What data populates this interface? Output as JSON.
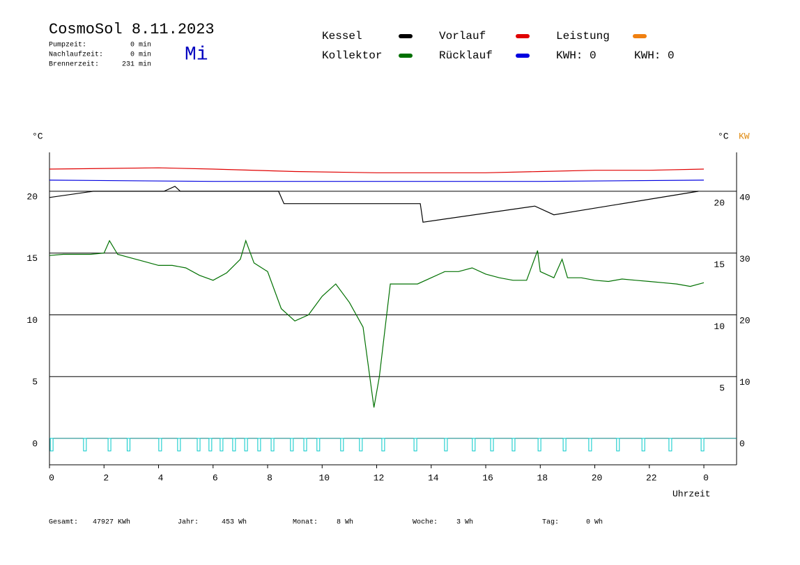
{
  "header": {
    "title": "CosmoSol 8.11.2023",
    "day": "Mi",
    "stats": [
      {
        "label": "Pumpzeit:",
        "value": "0 min"
      },
      {
        "label": "Nachlaufzeit:",
        "value": "0 min"
      },
      {
        "label": "Brennerzeit:",
        "value": "231 min"
      }
    ]
  },
  "legend_extra": [
    {
      "text": "KWH: 0",
      "color": "#e08a10"
    },
    {
      "text": "KWH: 0",
      "color": "#800080"
    }
  ],
  "footer": [
    {
      "label": "Gesamt:",
      "value": "47927 KWh"
    },
    {
      "label": "Jahr:",
      "value": "453 Wh"
    },
    {
      "label": "Monat:",
      "value": "8 Wh"
    },
    {
      "label": "Woche:",
      "value": "3 Wh"
    },
    {
      "label": "Tag:",
      "value": "0 Wh"
    }
  ],
  "chart_data": {
    "type": "line",
    "y_label": "°C",
    "y_right_label": "°C",
    "y2_label": "KW",
    "x_label": "Uhrzeit",
    "xlim": [
      0,
      25.2
    ],
    "xticks": [
      0,
      2,
      4,
      6,
      8,
      10,
      12,
      14,
      16,
      18,
      20,
      22,
      {
        "value": 24,
        "label": "0"
      }
    ],
    "ylim": [
      -2.14,
      23.15
    ],
    "yticks": [
      0,
      5,
      10,
      15,
      20
    ],
    "y2lim": [
      -3.39,
      47.34
    ],
    "y2ticks": [
      0,
      10,
      20,
      30,
      40
    ],
    "grid": true,
    "series": [
      {
        "name": "Kessel",
        "color": "#000000",
        "x": [
          0,
          1.6,
          4.2,
          4.6,
          4.8,
          8.4,
          8.6,
          13.6,
          13.7,
          17.8,
          18.5,
          23.8
        ],
        "values": [
          19.5,
          20,
          20,
          20.4,
          20,
          20,
          19,
          19,
          17.5,
          18.8,
          18.1,
          20
        ]
      },
      {
        "name": "Kollektor",
        "color": "#007000",
        "x": [
          0,
          0.5,
          1,
          1.5,
          2,
          2.2,
          2.5,
          3,
          3.5,
          4,
          4.5,
          5,
          5.5,
          6,
          6.5,
          7,
          7.2,
          7.5,
          8,
          8.5,
          9,
          9.5,
          10,
          10.5,
          11,
          11.5,
          11.9,
          12.1,
          12.5,
          13,
          13.5,
          14,
          14.5,
          15,
          15.5,
          16,
          16.5,
          17,
          17.5,
          17.9,
          18,
          18.5,
          18.8,
          19,
          19.5,
          20,
          20.5,
          21,
          21.5,
          22,
          22.5,
          23,
          23.5,
          24
        ],
        "values": [
          14.8,
          14.9,
          14.9,
          14.9,
          15,
          16,
          14.9,
          14.6,
          14.3,
          14,
          14,
          13.8,
          13.2,
          12.8,
          13.4,
          14.5,
          16,
          14.2,
          13.5,
          10.5,
          9.5,
          10,
          11.5,
          12.5,
          11,
          9,
          2.5,
          5,
          12.5,
          12.5,
          12.5,
          13,
          13.5,
          13.5,
          13.8,
          13.3,
          13,
          12.8,
          12.8,
          15.2,
          13.5,
          13,
          14.5,
          13,
          13,
          12.8,
          12.7,
          12.9,
          12.8,
          12.7,
          12.6,
          12.5,
          12.3,
          12.6
        ]
      },
      {
        "name": "Vorlauf",
        "color": "#e00000",
        "x": [
          0,
          4,
          6,
          9,
          12,
          14,
          16,
          18,
          20,
          22,
          24
        ],
        "values": [
          21.8,
          21.9,
          21.8,
          21.6,
          21.5,
          21.5,
          21.5,
          21.6,
          21.7,
          21.7,
          21.8
        ]
      },
      {
        "name": "Rücklauf",
        "color": "#0000e0",
        "x": [
          0,
          6,
          12,
          18,
          24
        ],
        "values": [
          20.9,
          20.8,
          20.8,
          20.8,
          20.9
        ]
      },
      {
        "name": "Leistung",
        "color": "#f08010",
        "axis": "y2",
        "x": [],
        "values": []
      }
    ],
    "pulses": {
      "color": "#00c8c8",
      "x": [
        0.08,
        1.3,
        2.2,
        2.9,
        4.06,
        4.75,
        5.47,
        5.9,
        6.31,
        6.77,
        7.21,
        7.69,
        8.18,
        8.89,
        9.38,
        9.86,
        10.73,
        11.42,
        12.24,
        13.42,
        14.54,
        15.56,
        16.23,
        17.02,
        17.97,
        18.89,
        19.83,
        20.85,
        21.78,
        22.77,
        23.95
      ]
    }
  }
}
